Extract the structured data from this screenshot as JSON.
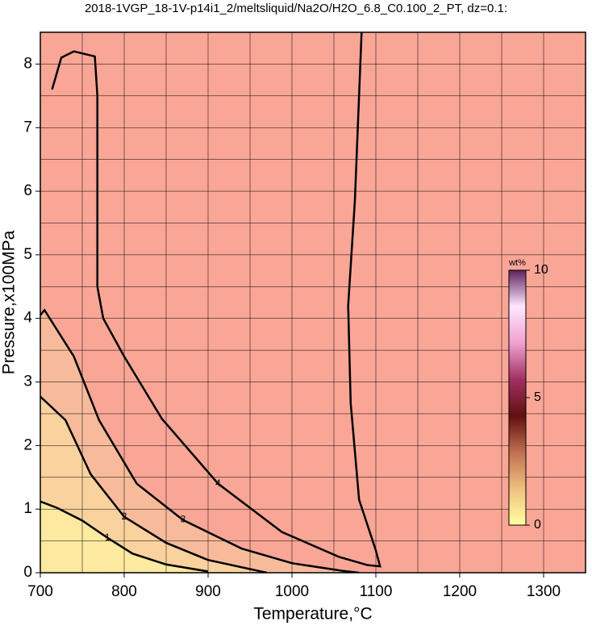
{
  "chart_data": {
    "type": "contour",
    "title": "2018-1VGP_18-1V-p14i1_2/meltsliquid/Na2O/H2O_6.8_C0.100_2_PT, dz=0.1:",
    "x_label": "Temperature,°C",
    "y_label": "Pressure,x100MPa",
    "xlim": [
      700,
      1350
    ],
    "ylim": [
      0,
      8.5
    ],
    "xticks": [
      700,
      800,
      900,
      1000,
      1100,
      1200,
      1300
    ],
    "yticks": [
      0,
      1,
      2,
      3,
      4,
      5,
      6,
      7,
      8
    ],
    "xminorticks": [
      750,
      850,
      950,
      1050,
      1150,
      1250
    ],
    "yminorticks": [
      0.5,
      1.5,
      2.5,
      3.5,
      4.5,
      5.5,
      6.5,
      7.5
    ],
    "grid": true,
    "background": "#f9a697",
    "line_color": "#000000",
    "series": [
      {
        "name": "1",
        "fill": "#fde9a0",
        "x": [
          700,
          720,
          750,
          780,
          810,
          850,
          900
        ],
        "y": [
          1.12,
          1.02,
          0.82,
          0.55,
          0.3,
          0.13,
          0.02
        ]
      },
      {
        "name": "2",
        "fill": "#f9d29e",
        "x": [
          700,
          730,
          760,
          800,
          850,
          900,
          970
        ],
        "y": [
          2.77,
          2.4,
          1.55,
          0.88,
          0.47,
          0.2,
          0
        ]
      },
      {
        "name": "3",
        "fill": "#f7bb9b",
        "x": [
          700,
          705,
          740,
          770,
          815,
          870,
          940,
          1000,
          1060,
          1080
        ],
        "y": [
          4.05,
          4.13,
          3.4,
          2.4,
          1.4,
          0.83,
          0.38,
          0.15,
          0.03,
          0
        ]
      },
      {
        "name": "4",
        "x": [
          714,
          725,
          740,
          765,
          768,
          768,
          768,
          775,
          800,
          845,
          912,
          988,
          1056,
          1090,
          1105,
          1100,
          1080,
          1070,
          1067,
          1075,
          1083
        ],
        "y": [
          7.6,
          8.1,
          8.2,
          8.12,
          7.5,
          6,
          4.5,
          4.0,
          3.4,
          2.42,
          1.4,
          0.64,
          0.25,
          0.12,
          0.1,
          0.35,
          1.15,
          2.67,
          4.2,
          5.85,
          8.5
        ]
      }
    ],
    "colorbar": {
      "label": "wt%",
      "lim": [
        0,
        10
      ],
      "ticks": [
        0,
        5,
        10
      ],
      "colors": [
        "#ffffa0",
        "#f0c080",
        "#c07050",
        "#601010",
        "#a03060",
        "#f0a0d0",
        "#ffe8ff",
        "#602060"
      ]
    }
  }
}
